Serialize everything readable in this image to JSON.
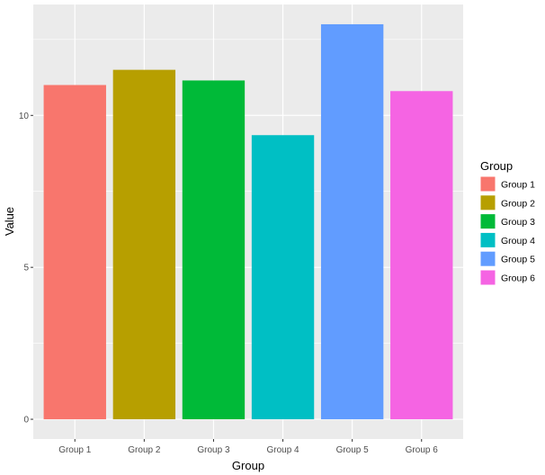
{
  "chart_data": {
    "type": "bar",
    "categories": [
      "Group 1",
      "Group 2",
      "Group 3",
      "Group 4",
      "Group 5",
      "Group 6"
    ],
    "values": [
      11.0,
      11.5,
      11.15,
      9.35,
      13.0,
      10.8
    ],
    "colors": [
      "#F8766D",
      "#B79F00",
      "#00BA38",
      "#00BFC4",
      "#619CFF",
      "#F564E3"
    ],
    "xlabel": "Group",
    "ylabel": "Value",
    "ylim": [
      -0.65,
      13.65
    ],
    "yticks": [
      0,
      5,
      10
    ],
    "ytick_labels": [
      "0",
      "5",
      "10"
    ],
    "grid": true,
    "panel_background": "#EBEBEB",
    "legend": {
      "title": "Group",
      "position": "right",
      "entries": [
        "Group 1",
        "Group 2",
        "Group 3",
        "Group 4",
        "Group 5",
        "Group 6"
      ]
    }
  }
}
